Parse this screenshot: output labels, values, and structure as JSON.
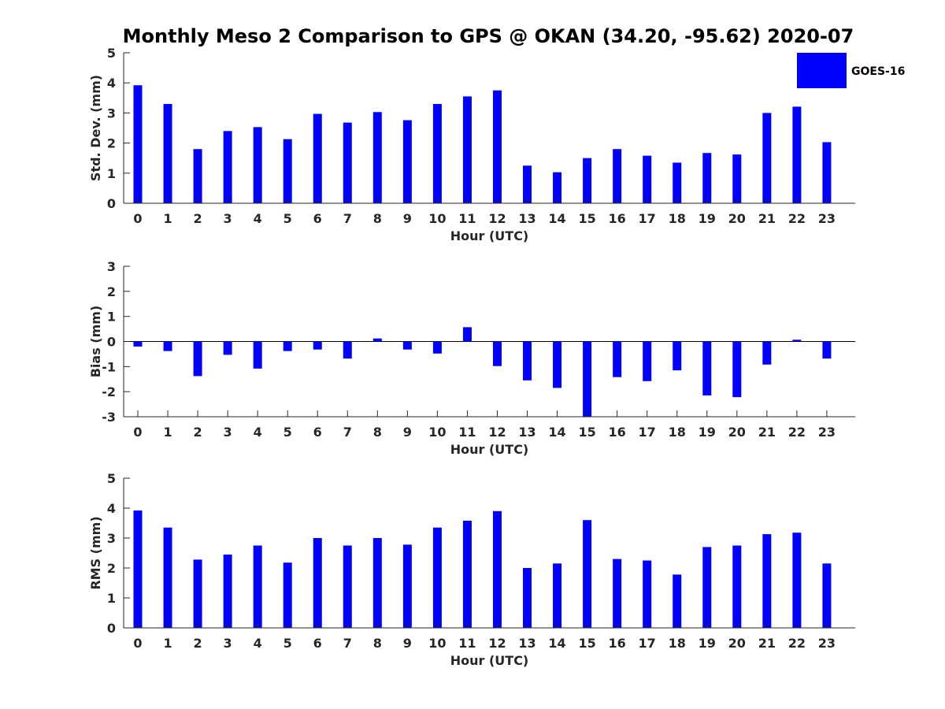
{
  "chart_data": {
    "type": "bar",
    "title": "Monthly Meso 2 Comparison to GPS @ OKAN (34.20, -95.62) 2020-07",
    "legend": {
      "label": "GOES-16",
      "color": "#0000ff",
      "placement": "top-right"
    },
    "categories": [
      "0",
      "1",
      "2",
      "3",
      "4",
      "5",
      "6",
      "7",
      "8",
      "9",
      "10",
      "11",
      "12",
      "13",
      "14",
      "15",
      "16",
      "17",
      "18",
      "19",
      "20",
      "21",
      "22",
      "23"
    ],
    "panels": [
      {
        "id": "stddev",
        "ylabel": "Std. Dev. (mm)",
        "xlabel": "Hour (UTC)",
        "ylim": [
          0,
          5
        ],
        "yticks": [
          "0",
          "1",
          "2",
          "3",
          "4",
          "5"
        ],
        "series": [
          {
            "name": "GOES-16",
            "values": [
              3.92,
              3.3,
              1.8,
              2.4,
              2.53,
              2.13,
              2.97,
              2.68,
              3.03,
              2.76,
              3.3,
              3.55,
              3.75,
              1.25,
              1.03,
              1.5,
              1.8,
              1.58,
              1.35,
              1.67,
              1.62,
              3.0,
              3.21,
              2.03
            ]
          }
        ]
      },
      {
        "id": "bias",
        "ylabel": "Bias (mm)",
        "xlabel": "Hour (UTC)",
        "ylim": [
          -3,
          3
        ],
        "yticks": [
          "-3",
          "-2",
          "-1",
          "0",
          "1",
          "2",
          "3"
        ],
        "series": [
          {
            "name": "GOES-16",
            "values": [
              -0.2,
              -0.38,
              -1.38,
              -0.53,
              -1.08,
              -0.38,
              -0.32,
              -0.68,
              0.12,
              -0.32,
              -0.48,
              0.57,
              -0.98,
              -1.55,
              -1.85,
              -3.0,
              -1.42,
              -1.58,
              -1.15,
              -2.15,
              -2.22,
              -0.92,
              0.07,
              -0.68
            ]
          }
        ]
      },
      {
        "id": "rms",
        "ylabel": "RMS (mm)",
        "xlabel": "Hour (UTC)",
        "ylim": [
          0,
          5
        ],
        "yticks": [
          "0",
          "1",
          "2",
          "3",
          "4",
          "5"
        ],
        "series": [
          {
            "name": "GOES-16",
            "values": [
              3.92,
              3.35,
              2.28,
              2.45,
              2.75,
              2.18,
              3.0,
              2.75,
              3.0,
              2.78,
              3.35,
              3.58,
              3.9,
              2.0,
              2.15,
              3.6,
              2.3,
              2.25,
              1.78,
              2.7,
              2.75,
              3.13,
              3.18,
              2.15
            ]
          }
        ]
      }
    ]
  }
}
